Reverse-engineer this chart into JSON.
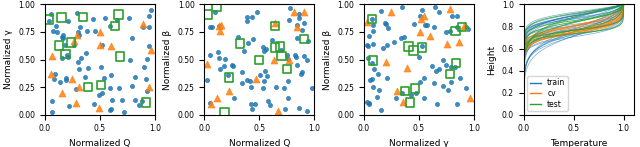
{
  "scatter_plots": [
    {
      "xlabel": "Normalized Q",
      "ylabel": "Normalized γ"
    },
    {
      "xlabel": "Normalized Q",
      "ylabel": "Normalized β"
    },
    {
      "xlabel": "Normalized γ",
      "ylabel": "Normalized β"
    }
  ],
  "line_plot": {
    "xlabel": "Temperature",
    "ylabel": "Height",
    "xlim": [
      0.0,
      1.1
    ],
    "ylim": [
      0.0,
      1.0
    ]
  },
  "blue_color": "#1f77b4",
  "orange_color": "#ff7f0e",
  "green_color": "#2ca02c",
  "n_blue": 70,
  "n_orange": 15,
  "n_green": 12,
  "seed": 42,
  "n_train_lines": 30,
  "n_cv_lines": 8,
  "n_test_lines": 8
}
